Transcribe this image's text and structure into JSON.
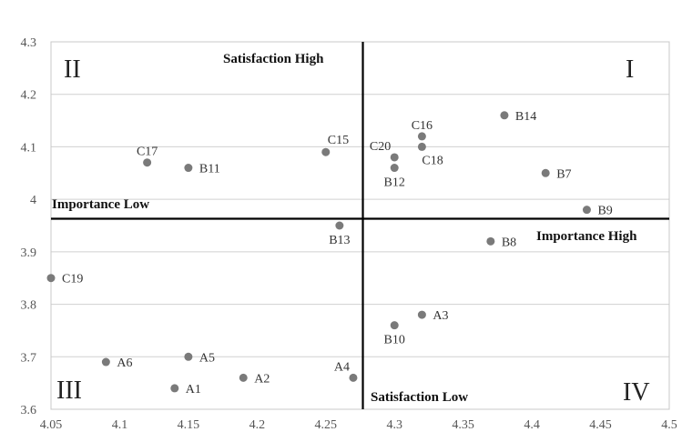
{
  "chart_data": {
    "type": "scatter",
    "title": "",
    "xlabel": "",
    "ylabel": "",
    "xlim": [
      4.05,
      4.5
    ],
    "ylim": [
      3.6,
      4.3
    ],
    "x_ticks": [
      "4.05",
      "4.1",
      "4.15",
      "4.2",
      "4.25",
      "4.3",
      "4.35",
      "4.4",
      "4.45",
      "4.5"
    ],
    "y_ticks": [
      "3.6",
      "3.7",
      "3.8",
      "3.9",
      "4",
      "4.1",
      "4.2",
      "4.3"
    ],
    "grid": "horizontal",
    "divider": {
      "x": 4.277,
      "y": 3.963
    },
    "quadrants": [
      {
        "label": "II",
        "corner": "top-left"
      },
      {
        "label": "I",
        "corner": "top-right"
      },
      {
        "label": "III",
        "corner": "bottom-left"
      },
      {
        "label": "IV",
        "corner": "bottom-right"
      }
    ],
    "annotations": {
      "satisfaction_high": "Satisfaction High",
      "satisfaction_low": "Satisfaction Low",
      "importance_low": "Importance Low",
      "importance_high": "Importance High"
    },
    "color": "#7a7a7a",
    "points": [
      {
        "label": "B14",
        "x": 4.38,
        "y": 4.16,
        "pos": "right"
      },
      {
        "label": "C16",
        "x": 4.32,
        "y": 4.12,
        "pos": "top"
      },
      {
        "label": "C18",
        "x": 4.32,
        "y": 4.1,
        "pos": "below-right"
      },
      {
        "label": "C20",
        "x": 4.3,
        "y": 4.08,
        "pos": "top-left"
      },
      {
        "label": "B12",
        "x": 4.3,
        "y": 4.06,
        "pos": "bottom"
      },
      {
        "label": "B7",
        "x": 4.41,
        "y": 4.05,
        "pos": "right"
      },
      {
        "label": "B9",
        "x": 4.44,
        "y": 3.98,
        "pos": "right"
      },
      {
        "label": "C15",
        "x": 4.25,
        "y": 4.09,
        "pos": "top-right"
      },
      {
        "label": "C17",
        "x": 4.12,
        "y": 4.07,
        "pos": "top"
      },
      {
        "label": "B11",
        "x": 4.15,
        "y": 4.06,
        "pos": "right"
      },
      {
        "label": "B13",
        "x": 4.26,
        "y": 3.95,
        "pos": "bottom"
      },
      {
        "label": "B8",
        "x": 4.37,
        "y": 3.92,
        "pos": "right"
      },
      {
        "label": "C19",
        "x": 4.05,
        "y": 3.85,
        "pos": "right"
      },
      {
        "label": "A3",
        "x": 4.32,
        "y": 3.78,
        "pos": "right"
      },
      {
        "label": "B10",
        "x": 4.3,
        "y": 3.76,
        "pos": "bottom"
      },
      {
        "label": "A6",
        "x": 4.09,
        "y": 3.69,
        "pos": "right"
      },
      {
        "label": "A5",
        "x": 4.15,
        "y": 3.7,
        "pos": "right"
      },
      {
        "label": "A2",
        "x": 4.19,
        "y": 3.66,
        "pos": "right"
      },
      {
        "label": "A1",
        "x": 4.14,
        "y": 3.64,
        "pos": "right"
      },
      {
        "label": "A4",
        "x": 4.27,
        "y": 3.66,
        "pos": "top-left"
      }
    ]
  }
}
